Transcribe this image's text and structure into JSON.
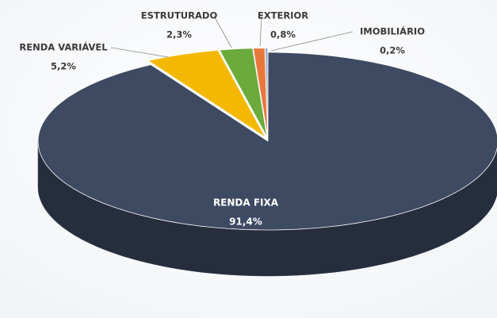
{
  "chart_data": {
    "type": "pie",
    "categories": [
      "RENDA FIXA",
      "RENDA VARIÁVEL",
      "ESTRUTURADO",
      "EXTERIOR",
      "IMOBILIÁRIO"
    ],
    "values": [
      91.4,
      5.2,
      2.3,
      0.8,
      0.2
    ],
    "value_labels": [
      "91,4%",
      "5,2%",
      "2,3%",
      "0,8%",
      "0,2%"
    ],
    "colors": [
      "#3e4a62",
      "#f4b800",
      "#6aab3c",
      "#e9773c",
      "#9fb0c8"
    ]
  }
}
